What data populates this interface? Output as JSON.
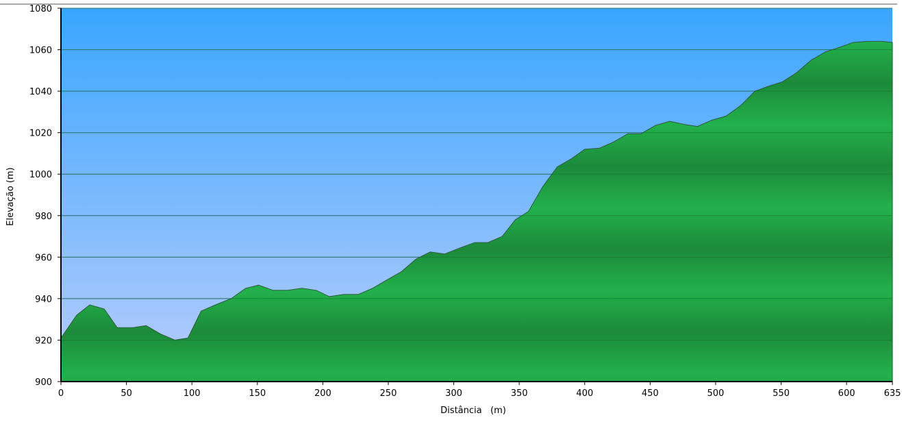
{
  "chart_data": {
    "type": "area",
    "title": "",
    "xlabel": "Distância   (m)",
    "ylabel": "Elevação (m)",
    "xlim": [
      0,
      635
    ],
    "ylim": [
      900,
      1080
    ],
    "x_ticks": [
      "0",
      "50",
      "100",
      "150",
      "200",
      "250",
      "300",
      "350",
      "400",
      "450",
      "500",
      "550",
      "600",
      "635"
    ],
    "y_ticks": [
      "900",
      "920",
      "940",
      "960",
      "980",
      "1000",
      "1020",
      "1040",
      "1060",
      "1080"
    ],
    "grid": true,
    "series": [
      {
        "name": "Elevação",
        "x": [
          0,
          12,
          22,
          33,
          43,
          55,
          65,
          76,
          87,
          97,
          107,
          118,
          130,
          141,
          151,
          162,
          173,
          184,
          195,
          205,
          216,
          227,
          238,
          249,
          260,
          271,
          282,
          293,
          305,
          316,
          326,
          337,
          347,
          357,
          368,
          379,
          390,
          400,
          411,
          422,
          433,
          443,
          454,
          465,
          476,
          486,
          497,
          508,
          519,
          530,
          541,
          551,
          562,
          573,
          584,
          594,
          605,
          616,
          627,
          635
        ],
        "y": [
          921,
          932,
          937,
          935,
          926,
          926,
          927,
          923,
          920,
          921,
          934,
          937,
          940,
          945,
          946.5,
          944,
          944,
          945,
          944,
          941,
          942,
          942,
          945,
          949,
          953,
          959,
          962.5,
          961.5,
          964.5,
          967,
          967,
          970,
          978,
          982,
          994,
          1003.5,
          1007.5,
          1012,
          1012.5,
          1015.5,
          1019.5,
          1019.5,
          1023.5,
          1025.5,
          1024,
          1023,
          1026,
          1028,
          1033,
          1040,
          1042.5,
          1044.5,
          1049,
          1055,
          1059,
          1061,
          1063.5,
          1064,
          1064,
          1063.5
        ]
      }
    ]
  }
}
